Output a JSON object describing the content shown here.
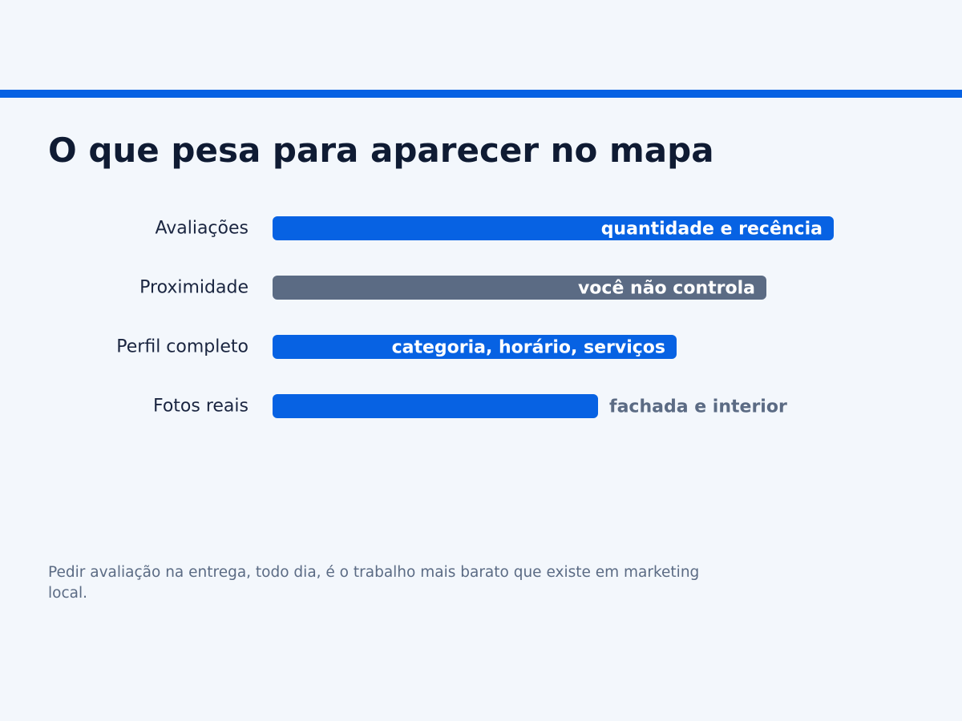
{
  "colors": {
    "accent": "#0762e3",
    "muted_bar": "#5b6b84",
    "title_text": "#0f1b33",
    "category_text": "#1a2540",
    "outside_label_text": "#5b6b84",
    "inside_label_text": "#ffffff",
    "background": "#f3f7fc"
  },
  "chart_data": {
    "type": "bar",
    "orientation": "horizontal",
    "title": "O que pesa para aparecer no mapa",
    "xlabel": "",
    "ylabel": "",
    "xlim": [
      0,
      100
    ],
    "grid": false,
    "legend": "none",
    "categories": [
      "Avaliações",
      "Proximidade",
      "Perfil completo",
      "Fotos reais"
    ],
    "values": [
      100,
      88,
      72,
      58
    ],
    "bar_labels": [
      "quantidade e recência",
      "você não controla",
      "categoria, horário, serviços",
      "fachada e interior"
    ],
    "bar_label_placement": [
      "inside",
      "inside",
      "inside",
      "outside"
    ],
    "bar_colors": [
      "#0762e3",
      "#5b6b84",
      "#0762e3",
      "#0762e3"
    ]
  },
  "footnote": "Pedir avaliação na entrega, todo dia, é o trabalho mais barato que existe em marketing local."
}
